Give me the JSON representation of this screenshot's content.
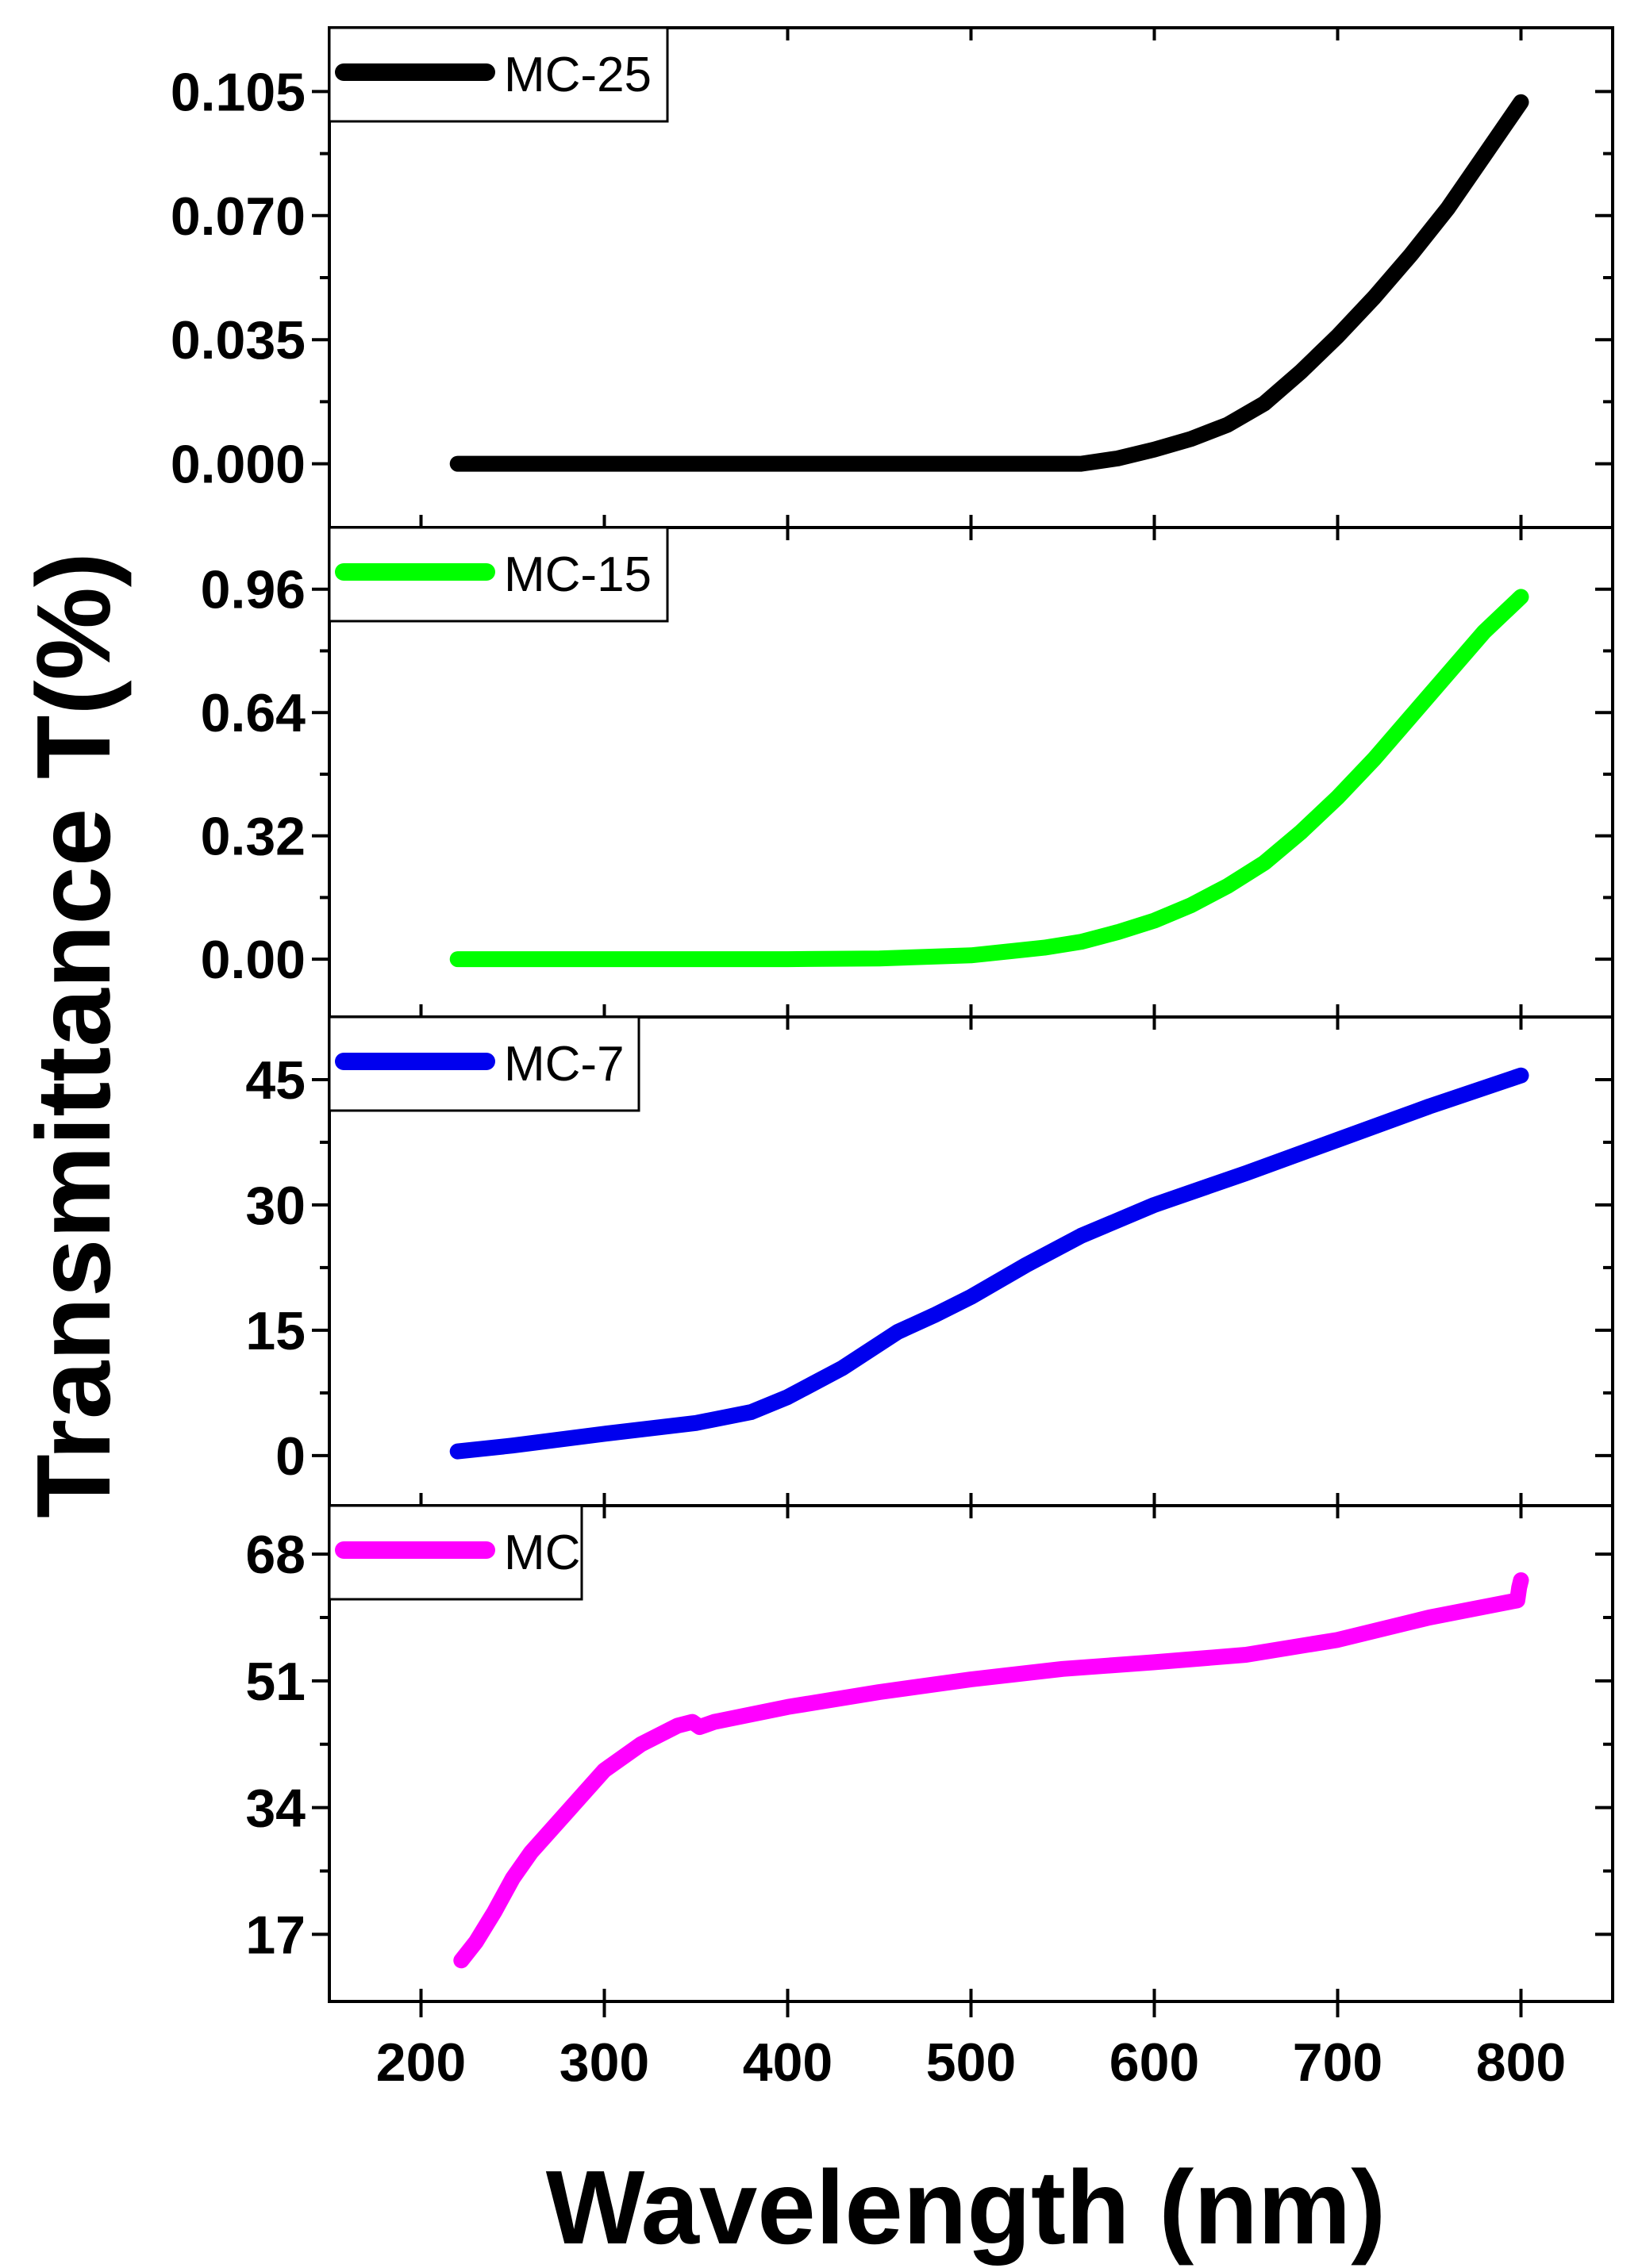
{
  "chart_data": {
    "type": "line",
    "layout": "stacked-panels",
    "xlabel": "Wavelength (nm)",
    "ylabel": "Transmittance T(%)",
    "xlim": [
      150,
      850
    ],
    "xticks": [
      200,
      300,
      400,
      500,
      600,
      700,
      800
    ],
    "xtick_labels": [
      "200",
      "300",
      "400",
      "500",
      "600",
      "700",
      "800"
    ],
    "panels": [
      {
        "name": "MC-25",
        "color": "#000000",
        "ylim": [
          -0.018,
          0.123
        ],
        "yticks": [
          0.0,
          0.035,
          0.07,
          0.105
        ],
        "ytick_labels": [
          "0.000",
          "0.035",
          "0.070",
          "0.105"
        ],
        "legend": "MC-25",
        "x": [
          220,
          300,
          400,
          500,
          560,
          580,
          600,
          620,
          640,
          660,
          680,
          700,
          720,
          740,
          760,
          780,
          800
        ],
        "y": [
          0.0,
          0.0,
          0.0,
          0.0,
          0.0,
          0.0015,
          0.004,
          0.007,
          0.011,
          0.017,
          0.026,
          0.036,
          0.047,
          0.059,
          0.072,
          0.087,
          0.102
        ]
      },
      {
        "name": "MC-15",
        "color": "#00ff00",
        "ylim": [
          -0.15,
          1.12
        ],
        "yticks": [
          0.0,
          0.32,
          0.64,
          0.96
        ],
        "ytick_labels": [
          "0.00",
          "0.32",
          "0.64",
          "0.96"
        ],
        "legend": "MC-15",
        "x": [
          220,
          300,
          400,
          450,
          500,
          540,
          560,
          580,
          600,
          620,
          640,
          660,
          680,
          700,
          720,
          740,
          760,
          780,
          800
        ],
        "y": [
          0.0,
          0.0,
          0.0,
          0.002,
          0.01,
          0.03,
          0.045,
          0.07,
          0.1,
          0.14,
          0.19,
          0.25,
          0.33,
          0.42,
          0.52,
          0.63,
          0.74,
          0.85,
          0.94
        ]
      },
      {
        "name": "MC-7",
        "color": "#0000ee",
        "ylim": [
          -6,
          52.5
        ],
        "yticks": [
          0,
          15,
          30,
          45
        ],
        "ytick_labels": [
          "0",
          "15",
          "30",
          "45"
        ],
        "legend": "MC-7",
        "x": [
          220,
          250,
          300,
          350,
          380,
          400,
          430,
          460,
          480,
          500,
          530,
          560,
          600,
          650,
          700,
          750,
          800
        ],
        "y": [
          0.5,
          1.2,
          2.6,
          3.9,
          5.2,
          7.0,
          10.5,
          14.8,
          16.8,
          19.0,
          22.8,
          26.3,
          30.0,
          33.8,
          37.8,
          41.8,
          45.5
        ]
      },
      {
        "name": "MC",
        "color": "#ff00ff",
        "ylim": [
          8,
          74.5
        ],
        "yticks": [
          17,
          34,
          51,
          68
        ],
        "ytick_labels": [
          "17",
          "34",
          "51",
          "68"
        ],
        "legend": "MC",
        "x": [
          222,
          230,
          240,
          250,
          260,
          280,
          300,
          320,
          340,
          348,
          352,
          360,
          400,
          450,
          500,
          550,
          600,
          650,
          700,
          750,
          798,
          799,
          800
        ],
        "y": [
          13.5,
          16.0,
          20.0,
          24.5,
          28.0,
          33.5,
          39.0,
          42.5,
          45.0,
          45.5,
          44.8,
          45.5,
          47.5,
          49.5,
          51.2,
          52.6,
          53.5,
          54.5,
          56.5,
          59.5,
          61.8,
          63.5,
          64.5
        ]
      }
    ]
  }
}
